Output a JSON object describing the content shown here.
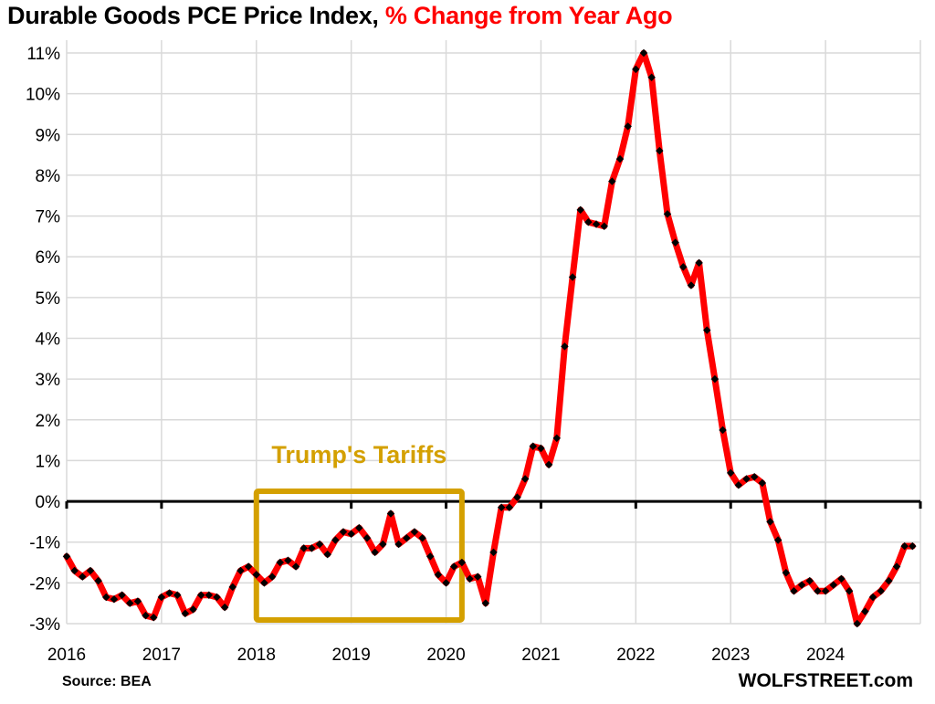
{
  "chart_data": {
    "type": "line",
    "title": "Durable Goods PCE Price Index,",
    "title_highlight": "% Change from Year Ago",
    "title_highlight_color": "#ff0000",
    "xlabel": "",
    "ylabel": "",
    "x_start": "2016-01",
    "x_frequency": "monthly",
    "x_tick_labels": [
      "2016",
      "2017",
      "2018",
      "2019",
      "2020",
      "2021",
      "2022",
      "2023",
      "2024"
    ],
    "y_tick_labels": [
      "-3%",
      "-2%",
      "-1%",
      "0%",
      "1%",
      "2%",
      "3%",
      "4%",
      "5%",
      "6%",
      "7%",
      "8%",
      "9%",
      "10%",
      "11%"
    ],
    "ylim": [
      -3,
      11
    ],
    "grid": true,
    "line_color": "#ff0000",
    "marker_color": "#000000",
    "series": [
      {
        "values": [
          -1.35,
          -1.7,
          -1.85,
          -1.7,
          -1.95,
          -2.35,
          -2.4,
          -2.3,
          -2.5,
          -2.45,
          -2.8,
          -2.85,
          -2.35,
          -2.25,
          -2.3,
          -2.75,
          -2.65,
          -2.3,
          -2.3,
          -2.35,
          -2.6,
          -2.1,
          -1.7,
          -1.6,
          -1.8,
          -2.0,
          -1.85,
          -1.5,
          -1.45,
          -1.6,
          -1.15,
          -1.15,
          -1.05,
          -1.3,
          -0.95,
          -0.75,
          -0.8,
          -0.65,
          -0.9,
          -1.25,
          -1.05,
          -0.3,
          -1.05,
          -0.9,
          -0.75,
          -0.9,
          -1.35,
          -1.8,
          -2.0,
          -1.6,
          -1.5,
          -1.9,
          -1.85,
          -2.5,
          -1.25,
          -0.15,
          -0.15,
          0.1,
          0.55,
          1.35,
          1.3,
          0.9,
          1.55,
          3.8,
          5.5,
          7.15,
          6.85,
          6.8,
          6.75,
          7.85,
          8.4,
          9.2,
          10.6,
          11.0,
          10.4,
          8.6,
          7.05,
          6.35,
          5.75,
          5.3,
          5.85,
          4.2,
          3.0,
          1.75,
          0.7,
          0.4,
          0.55,
          0.6,
          0.45,
          -0.5,
          -0.95,
          -1.75,
          -2.2,
          -2.05,
          -1.95,
          -2.2,
          -2.2,
          -2.05,
          -1.9,
          -2.2,
          -3.0,
          -2.7,
          -2.35,
          -2.2,
          -1.95,
          -1.6,
          -1.1,
          -1.1
        ]
      }
    ],
    "annotations": [
      {
        "text": "Trump's Tariffs",
        "from": "2018-01",
        "to": "2020-03",
        "color": "#d4a000"
      }
    ]
  },
  "source": "Source: BEA",
  "brand": "WOLFSTREET.com"
}
